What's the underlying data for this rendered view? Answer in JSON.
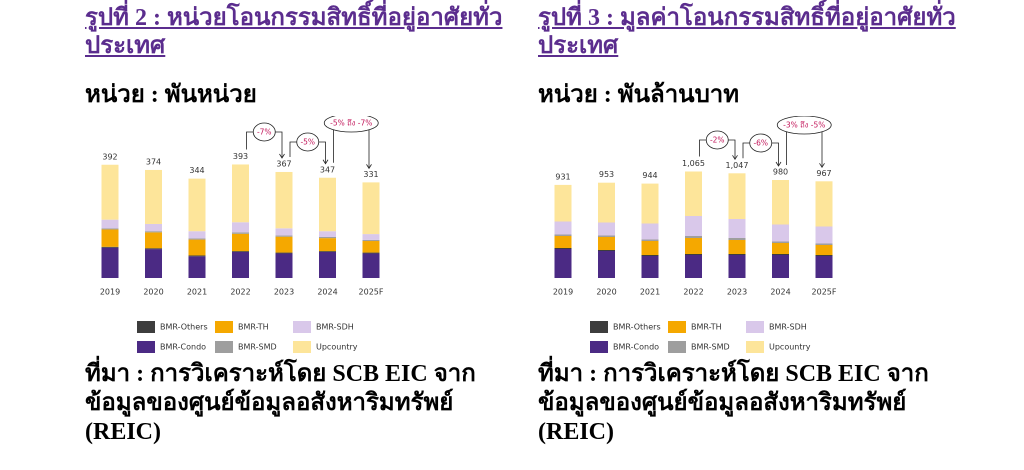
{
  "chart_data": [
    {
      "type": "stacked-bar",
      "title": "รูปที่ 2 : หน่วยโอนกรรมสิทธิ์ที่อยู่อาศัยทั่วประเทศ",
      "subtitle": "หน่วย : พันหน่วย",
      "source": "ที่มา : การวิเคราะห์โดย SCB EIC จากข้อมูลของศูนย์ข้อมูลอสังหาริมทรัพย์ (REIC)",
      "categories": [
        "2019",
        "2020",
        "2021",
        "2022",
        "2023",
        "2024",
        "2025F"
      ],
      "ylim": [
        0,
        450
      ],
      "series": [
        {
          "name": "BMR-Condo",
          "color": "#4b2a84",
          "values": [
            105,
            100,
            75,
            90,
            85,
            90,
            85
          ]
        },
        {
          "name": "BMR-Others",
          "color": "#3d3d3d",
          "values": [
            3,
            3,
            3,
            3,
            3,
            3,
            3
          ]
        },
        {
          "name": "BMR-TH",
          "color": "#f5a800",
          "values": [
            60,
            55,
            55,
            60,
            55,
            45,
            40
          ]
        },
        {
          "name": "BMR-SMD",
          "color": "#9e9e9e",
          "values": [
            4,
            4,
            4,
            5,
            4,
            4,
            4
          ]
        },
        {
          "name": "BMR-SDH",
          "color": "#d9c8ea",
          "values": [
            30,
            25,
            25,
            35,
            25,
            20,
            20
          ]
        },
        {
          "name": "Upcountry",
          "color": "#fde59a",
          "values": [
            190,
            187,
            182,
            200,
            195,
            185,
            179
          ]
        }
      ],
      "totals": [
        392,
        374,
        344,
        393,
        367,
        347,
        331
      ],
      "annotations": [
        "-7%",
        "-5%",
        "-5% ถึง -7%"
      ]
    },
    {
      "type": "stacked-bar",
      "title": "รูปที่ 3 : มูลค่าโอนกรรมสิทธิ์ที่อยู่อาศัยทั่วประเทศ",
      "subtitle": "หน่วย : พันล้านบาท",
      "source": "ที่มา : การวิเคราะห์โดย SCB EIC จากข้อมูลของศูนย์ข้อมูลอสังหาริมทรัพย์ (REIC)",
      "categories": [
        "2019",
        "2020",
        "2021",
        "2022",
        "2023",
        "2024",
        "2025F"
      ],
      "ylim": [
        0,
        1300
      ],
      "series": [
        {
          "name": "BMR-Condo",
          "color": "#4b2a84",
          "values": [
            290,
            270,
            220,
            230,
            230,
            230,
            220
          ]
        },
        {
          "name": "BMR-Others",
          "color": "#3d3d3d",
          "values": [
            10,
            10,
            10,
            10,
            10,
            10,
            10
          ]
        },
        {
          "name": "BMR-TH",
          "color": "#f5a800",
          "values": [
            120,
            130,
            140,
            160,
            140,
            110,
            100
          ]
        },
        {
          "name": "BMR-SMD",
          "color": "#9e9e9e",
          "values": [
            15,
            15,
            15,
            20,
            20,
            15,
            15
          ]
        },
        {
          "name": "BMR-SDH",
          "color": "#d9c8ea",
          "values": [
            130,
            130,
            160,
            200,
            190,
            170,
            170
          ]
        },
        {
          "name": "Upcountry",
          "color": "#fde59a",
          "values": [
            366,
            398,
            399,
            445,
            457,
            445,
            452
          ]
        }
      ],
      "totals": [
        931,
        953,
        944,
        1065,
        1047,
        980,
        967
      ],
      "total_labels": [
        "931",
        "953",
        "944",
        "1,065",
        "1,047",
        "980",
        "967"
      ],
      "annotations": [
        "-2%",
        "-6%",
        "-3% ถึง -5%"
      ]
    }
  ]
}
